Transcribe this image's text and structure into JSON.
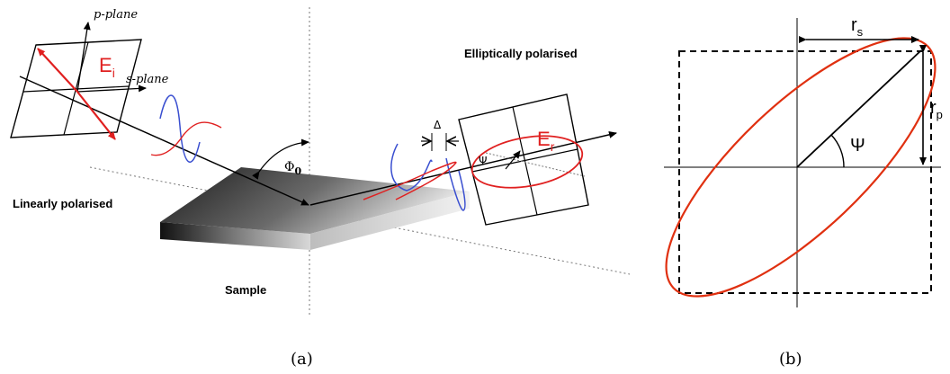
{
  "panel_a": {
    "p_plane_label": "p-plane",
    "s_plane_label": "s-plane",
    "ei_label": "E",
    "ei_sub": "i",
    "er_label": "E",
    "er_sub": "r",
    "phi_label": "Φ",
    "phi_sub": "0",
    "linearly_label": "Linearly polarised",
    "elliptically_label": "Elliptically polarised",
    "sample_label": "Sample",
    "delta_label": "Δ",
    "psi_label": "Ψ",
    "caption": "(a)",
    "colors": {
      "incident_red": "#e02020",
      "wave_blue": "#3a4fd0",
      "wave_red": "#e02020"
    }
  },
  "panel_b": {
    "rs_label": "r",
    "rs_sub": "s",
    "rp_label": "r",
    "rp_sub": "p",
    "psi_label": "Ψ",
    "caption": "(b)",
    "colors": {
      "ellipse": "#e03010"
    }
  }
}
